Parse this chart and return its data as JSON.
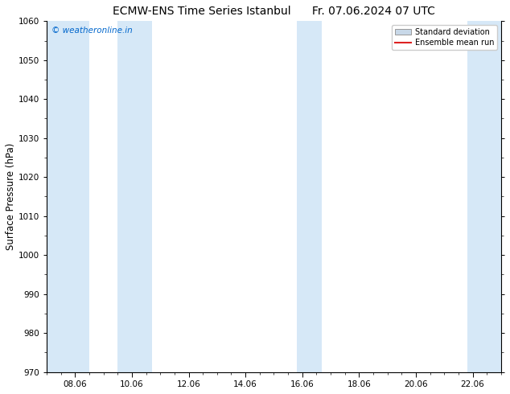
{
  "title_left": "ECMW-ENS Time Series Istanbul",
  "title_right": "Fr. 07.06.2024 07 UTC",
  "ylabel": "Surface Pressure (hPa)",
  "ylim": [
    970,
    1060
  ],
  "yticks": [
    970,
    980,
    990,
    1000,
    1010,
    1020,
    1030,
    1040,
    1050,
    1060
  ],
  "xtick_labels": [
    "08.06",
    "10.06",
    "12.06",
    "14.06",
    "16.06",
    "18.06",
    "20.06",
    "22.06"
  ],
  "xtick_positions": [
    1,
    3,
    5,
    7,
    9,
    11,
    13,
    15
  ],
  "x_min": 0.0,
  "x_max": 16.0,
  "watermark": "© weatheronline.in",
  "watermark_color": "#0066cc",
  "shaded_bands": [
    {
      "x_start": 0.0,
      "x_end": 1.5,
      "color": "#d6e8f7"
    },
    {
      "x_start": 2.5,
      "x_end": 3.7,
      "color": "#d6e8f7"
    },
    {
      "x_start": 8.8,
      "x_end": 9.7,
      "color": "#d6e8f7"
    },
    {
      "x_start": 14.8,
      "x_end": 16.0,
      "color": "#d6e8f7"
    }
  ],
  "legend_std_color": "#c8d8e8",
  "legend_std_edge": "#999999",
  "legend_mean_color": "#dd2222",
  "background_color": "#ffffff",
  "axes_bg_color": "#ffffff",
  "title_fontsize": 10,
  "tick_fontsize": 7.5,
  "ylabel_fontsize": 8.5
}
